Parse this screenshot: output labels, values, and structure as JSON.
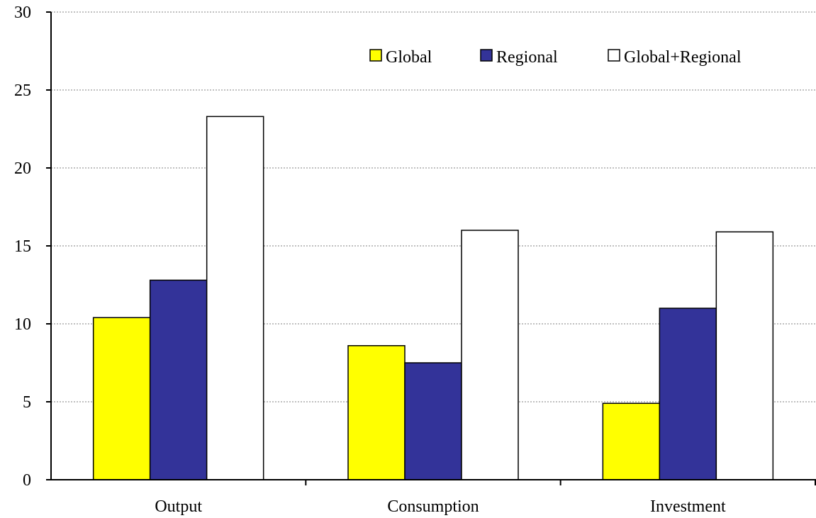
{
  "chart_data": {
    "type": "bar",
    "categories": [
      "Output",
      "Consumption",
      "Investment"
    ],
    "series": [
      {
        "name": "Global",
        "color": "#ffff00",
        "values": [
          10.4,
          8.6,
          4.9
        ]
      },
      {
        "name": "Regional",
        "color": "#333399",
        "values": [
          12.8,
          7.5,
          11.0
        ]
      },
      {
        "name": "Global+Regional",
        "color": "#ffffff",
        "values": [
          23.3,
          16.0,
          15.9
        ]
      }
    ],
    "ylim": [
      0,
      30
    ],
    "yticks": [
      0,
      5,
      10,
      15,
      20,
      25,
      30
    ],
    "grid": true,
    "legend_position": "top-right"
  }
}
